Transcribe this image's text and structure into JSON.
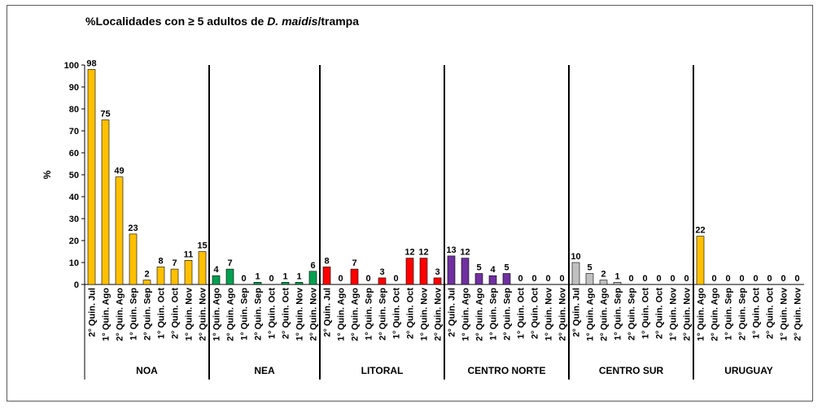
{
  "chart_data": {
    "type": "bar",
    "title_prefix": "%Localidades con ≥ 5 adultos de ",
    "title_species": "D. maidis",
    "title_suffix": "/trampa",
    "ylabel": "%",
    "ylim": [
      0,
      100
    ],
    "yticks": [
      0,
      10,
      20,
      30,
      40,
      50,
      60,
      70,
      80,
      90,
      100
    ],
    "grid": false,
    "groups": [
      {
        "name": "NOA",
        "color": "#FFC000",
        "categories": [
          "2° Quin. Jul",
          "1° Quin. Ago",
          "2° Quin. Ago",
          "1° Quin. Sep",
          "2° Quin. Sep",
          "1° Quin. Oct",
          "2° Quin. Oct",
          "1° Quin. Nov",
          "2° Quin. Nov"
        ],
        "values": [
          98,
          75,
          49,
          23,
          2,
          8,
          7,
          11,
          15
        ]
      },
      {
        "name": "NEA",
        "color": "#00A050",
        "categories": [
          "1° Quin. Ago",
          "2° Quin. Ago",
          "1° Quin. Sep",
          "2° Quin. Sep",
          "1° Quin. Oct",
          "2° Quin. Oct",
          "1° Quin. Nov",
          "2° Quin. Nov"
        ],
        "values": [
          4,
          7,
          0,
          1,
          0,
          1,
          1,
          6
        ]
      },
      {
        "name": "LITORAL",
        "color": "#FF0000",
        "categories": [
          "2° Quin. Jul",
          "1° Quin. Ago",
          "2° Quin. Ago",
          "1° Quin. Sep",
          "2° Quin. Sep",
          "1° Quin. Oct",
          "2° Quin. Oct",
          "1° Quin. Nov",
          "2° Quin. Nov"
        ],
        "values": [
          8,
          0,
          7,
          0,
          3,
          0,
          12,
          12,
          3
        ]
      },
      {
        "name": "CENTRO NORTE",
        "color": "#7030A0",
        "categories": [
          "2° Quin. Jul",
          "1° Quin. Ago",
          "2° Quin. Ago",
          "1° Quin. Sep",
          "2° Quin. Sep",
          "1° Quin. Oct",
          "2° Quin. Oct",
          "1° Quin. Nov",
          "2° Quin. Nov"
        ],
        "values": [
          13,
          12,
          5,
          4,
          5,
          0,
          0,
          0,
          0
        ]
      },
      {
        "name": "CENTRO SUR",
        "color": "#C0C0C0",
        "categories": [
          "2° Quin. Jul",
          "1° Quin. Ago",
          "2° Quin. Ago",
          "1° Quin. Sep",
          "2° Quin. Sep",
          "1° Quin. Oct",
          "2° Quin. Oct",
          "1° Quin. Nov",
          "2° Quin. Nov"
        ],
        "values": [
          10,
          5,
          2,
          1,
          0,
          0,
          0,
          0,
          0
        ]
      },
      {
        "name": "URUGUAY",
        "color": "#FFC000",
        "categories": [
          "1° Quin. Ago",
          "2° Quin. Ago",
          "1° Quin. Sep",
          "2° Quin. Sep",
          "1° Quin. Oct",
          "2° Quin. Oct",
          "1° Quin. Nov",
          "2° Quin. Nov"
        ],
        "values": [
          22,
          0,
          0,
          0,
          0,
          0,
          0,
          0
        ]
      }
    ]
  }
}
